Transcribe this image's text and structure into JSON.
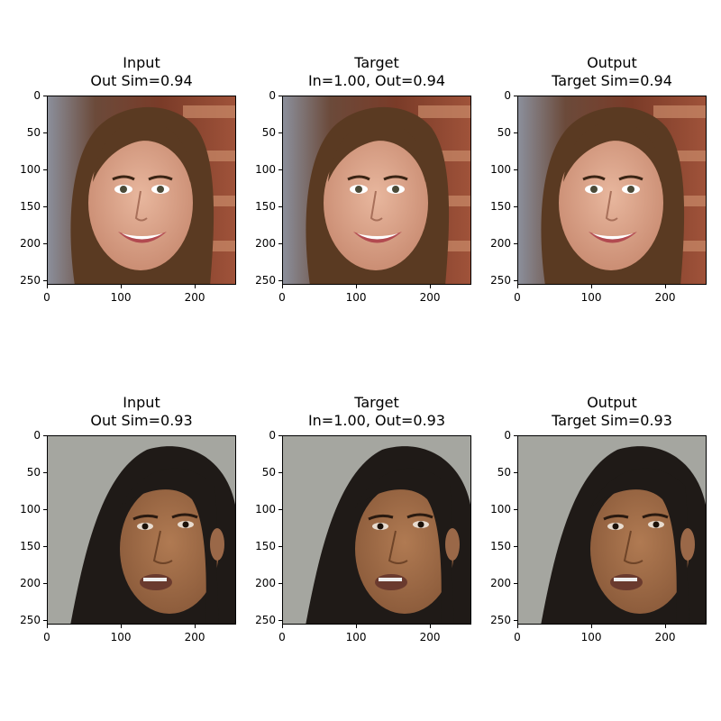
{
  "figure": {
    "panels": [
      {
        "id": "r1-input",
        "row": 0,
        "col": 0,
        "title_line1": "Input",
        "title_line2": "Out Sim=0.94",
        "subject": "smiling-woman"
      },
      {
        "id": "r1-target",
        "row": 0,
        "col": 1,
        "title_line1": "Target",
        "title_line2": "In=1.00, Out=0.94",
        "subject": "smiling-woman"
      },
      {
        "id": "r1-output",
        "row": 0,
        "col": 2,
        "title_line1": "Output",
        "title_line2": "Target Sim=0.94",
        "subject": "smiling-woman"
      },
      {
        "id": "r2-input",
        "row": 1,
        "col": 0,
        "title_line1": "Input",
        "title_line2": "Out Sim=0.93",
        "subject": "talking-woman"
      },
      {
        "id": "r2-target",
        "row": 1,
        "col": 1,
        "title_line1": "Target",
        "title_line2": "In=1.00, Out=0.93",
        "subject": "talking-woman"
      },
      {
        "id": "r2-output",
        "row": 1,
        "col": 2,
        "title_line1": "Output",
        "title_line2": "Target Sim=0.93",
        "subject": "talking-woman"
      }
    ],
    "x_ticks": [
      "0",
      "100",
      "200"
    ],
    "y_ticks": [
      "0",
      "50",
      "100",
      "150",
      "200",
      "250"
    ],
    "x_tick_values": [
      0,
      100,
      200
    ],
    "y_tick_values": [
      0,
      50,
      100,
      150,
      200,
      250
    ],
    "axis_max": 256
  }
}
